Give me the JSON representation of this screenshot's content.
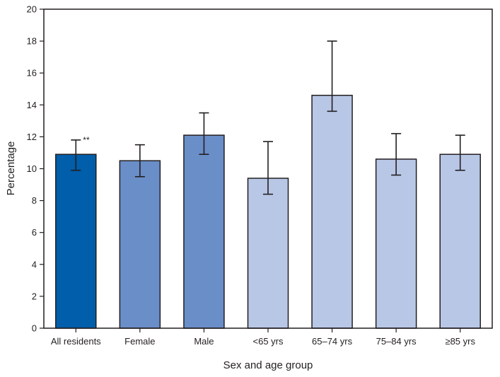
{
  "chart_data": {
    "type": "bar",
    "title": "",
    "xlabel": "Sex and age group",
    "ylabel": "Percentage",
    "ylim": [
      0,
      20
    ],
    "yticks": [
      0,
      2,
      4,
      6,
      8,
      10,
      12,
      14,
      16,
      18,
      20
    ],
    "grid": false,
    "legend": "none",
    "categories": [
      "All residents",
      "Female",
      "Male",
      "<65 yrs",
      "65–74 yrs",
      "75–84 yrs",
      "≥85 yrs"
    ],
    "values": [
      10.9,
      10.5,
      12.1,
      9.4,
      14.6,
      10.6,
      10.9
    ],
    "ci_lower": [
      9.9,
      9.5,
      10.9,
      8.4,
      13.6,
      9.6,
      9.9
    ],
    "ci_upper": [
      11.8,
      11.5,
      13.5,
      11.7,
      18.0,
      12.2,
      12.1
    ],
    "bar_colors": [
      "#005eaa",
      "#6a8ec8",
      "#6a8ec8",
      "#b8c7e6",
      "#b8c7e6",
      "#b8c7e6",
      "#b8c7e6"
    ],
    "annotations": [
      {
        "category": "All residents",
        "text": "**"
      }
    ]
  }
}
